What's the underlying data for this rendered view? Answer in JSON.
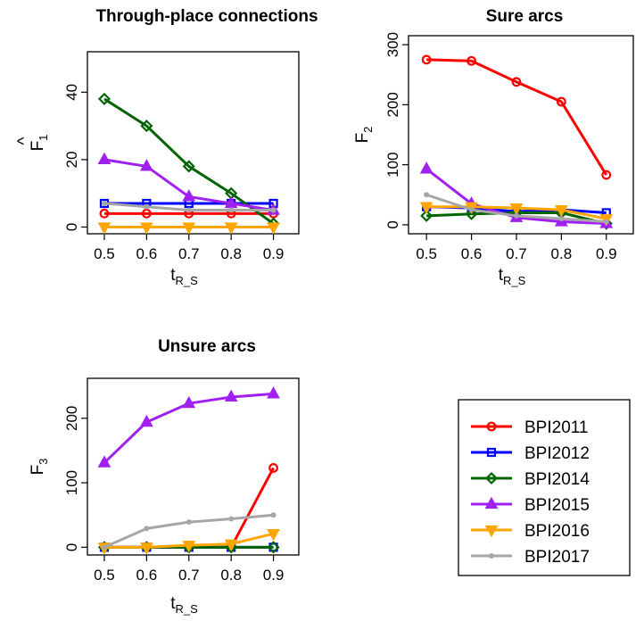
{
  "legend": {
    "entries": [
      "BPI2011",
      "BPI2012",
      "BPI2014",
      "BPI2015",
      "BPI2016",
      "BPI2017"
    ]
  },
  "series_styles": [
    {
      "name": "BPI2011",
      "color": "#ff0000",
      "marker": "circle"
    },
    {
      "name": "BPI2012",
      "color": "#0000ff",
      "marker": "square"
    },
    {
      "name": "BPI2014",
      "color": "#006400",
      "marker": "diamond"
    },
    {
      "name": "BPI2015",
      "color": "#a020f0",
      "marker": "triangle-up"
    },
    {
      "name": "BPI2016",
      "color": "#ffa500",
      "marker": "triangle-down"
    },
    {
      "name": "BPI2017",
      "color": "#a6a6a6",
      "marker": "dot"
    }
  ],
  "chart_data": [
    {
      "type": "line",
      "title": "Through-place connections",
      "ylabel_main": "F",
      "ylabel_hat": "^",
      "ylabel_sub": "1",
      "xlabel_main": "t",
      "xlabel_sub": "R_S",
      "x": [
        0.5,
        0.6,
        0.7,
        0.8,
        0.9
      ],
      "x_ticks": [
        "0.5",
        "0.6",
        "0.7",
        "0.8",
        "0.9"
      ],
      "y_ticks": [
        0,
        20,
        40
      ],
      "xlim": [
        0.46,
        0.96
      ],
      "ylim": [
        -2,
        52
      ],
      "series": [
        {
          "name": "BPI2011",
          "values": [
            4,
            4,
            4,
            4,
            4
          ]
        },
        {
          "name": "BPI2012",
          "values": [
            7,
            7,
            7,
            7,
            7
          ]
        },
        {
          "name": "BPI2014",
          "values": [
            38,
            30,
            18,
            10,
            1
          ]
        },
        {
          "name": "BPI2015",
          "values": [
            20,
            18,
            9,
            7,
            5
          ]
        },
        {
          "name": "BPI2016",
          "values": [
            0,
            0,
            0,
            0,
            0
          ]
        },
        {
          "name": "BPI2017",
          "values": [
            7,
            6,
            5,
            5,
            5
          ]
        }
      ]
    },
    {
      "type": "line",
      "title": "Sure arcs",
      "ylabel_main": "F",
      "ylabel_hat": "",
      "ylabel_sub": "2",
      "xlabel_main": "t",
      "xlabel_sub": "R_S",
      "x": [
        0.5,
        0.6,
        0.7,
        0.8,
        0.9
      ],
      "x_ticks": [
        "0.5",
        "0.6",
        "0.7",
        "0.8",
        "0.9"
      ],
      "y_ticks": [
        0,
        100,
        200,
        300
      ],
      "xlim": [
        0.46,
        0.96
      ],
      "ylim": [
        -15,
        315
      ],
      "series": [
        {
          "name": "BPI2011",
          "values": [
            275,
            273,
            238,
            205,
            83
          ]
        },
        {
          "name": "BPI2012",
          "values": [
            30,
            28,
            22,
            25,
            20
          ]
        },
        {
          "name": "BPI2014",
          "values": [
            15,
            18,
            20,
            20,
            2
          ]
        },
        {
          "name": "BPI2015",
          "values": [
            93,
            35,
            12,
            5,
            2
          ]
        },
        {
          "name": "BPI2016",
          "values": [
            30,
            30,
            28,
            25,
            10
          ]
        },
        {
          "name": "BPI2017",
          "values": [
            50,
            25,
            15,
            10,
            5
          ]
        }
      ]
    },
    {
      "type": "line",
      "title": "Unsure arcs",
      "ylabel_main": "F",
      "ylabel_hat": "",
      "ylabel_sub": "3",
      "xlabel_main": "t",
      "xlabel_sub": "R_S",
      "x": [
        0.5,
        0.6,
        0.7,
        0.8,
        0.9
      ],
      "x_ticks": [
        "0.5",
        "0.6",
        "0.7",
        "0.8",
        "0.9"
      ],
      "y_ticks": [
        0,
        100,
        200
      ],
      "xlim": [
        0.46,
        0.96
      ],
      "ylim": [
        -12,
        262
      ],
      "series": [
        {
          "name": "BPI2011",
          "values": [
            0,
            0,
            0,
            0,
            123
          ]
        },
        {
          "name": "BPI2012",
          "values": [
            0,
            0,
            0,
            0,
            0
          ]
        },
        {
          "name": "BPI2014",
          "values": [
            0,
            0,
            0,
            0,
            0
          ]
        },
        {
          "name": "BPI2015",
          "values": [
            131,
            194,
            223,
            233,
            238
          ]
        },
        {
          "name": "BPI2016",
          "values": [
            0,
            0,
            3,
            5,
            21
          ]
        },
        {
          "name": "BPI2017",
          "values": [
            0,
            29,
            39,
            44,
            50
          ]
        }
      ]
    }
  ]
}
